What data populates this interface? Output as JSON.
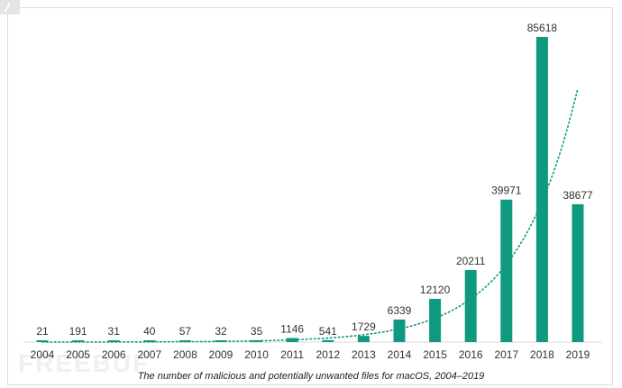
{
  "chart_data": {
    "type": "bar",
    "categories": [
      "2004",
      "2005",
      "2006",
      "2007",
      "2008",
      "2009",
      "2010",
      "2011",
      "2012",
      "2013",
      "2014",
      "2015",
      "2016",
      "2017",
      "2018",
      "2019"
    ],
    "values": [
      21,
      191,
      31,
      40,
      57,
      32,
      35,
      1146,
      541,
      1729,
      6339,
      12120,
      20211,
      39971,
      85618,
      38677
    ],
    "value_labels": [
      "21",
      "191",
      "31",
      "40",
      "57",
      "32",
      "35",
      "1146",
      "541",
      "1729",
      "6339",
      "12120",
      "20211",
      "39971",
      "85618",
      "38677"
    ],
    "ylim": [
      0,
      85618
    ],
    "trendline": {
      "type": "exponential",
      "style": "dotted"
    },
    "grid": false,
    "legend": "none"
  },
  "caption": "The number of malicious and potentially unwanted files for macOS, 2004–2019",
  "watermark": "FREEBUF",
  "colors": {
    "bar": "#0f9a7f",
    "trend": "#0f9a7f",
    "baseline": "#d8d8d8",
    "text": "#333333"
  }
}
